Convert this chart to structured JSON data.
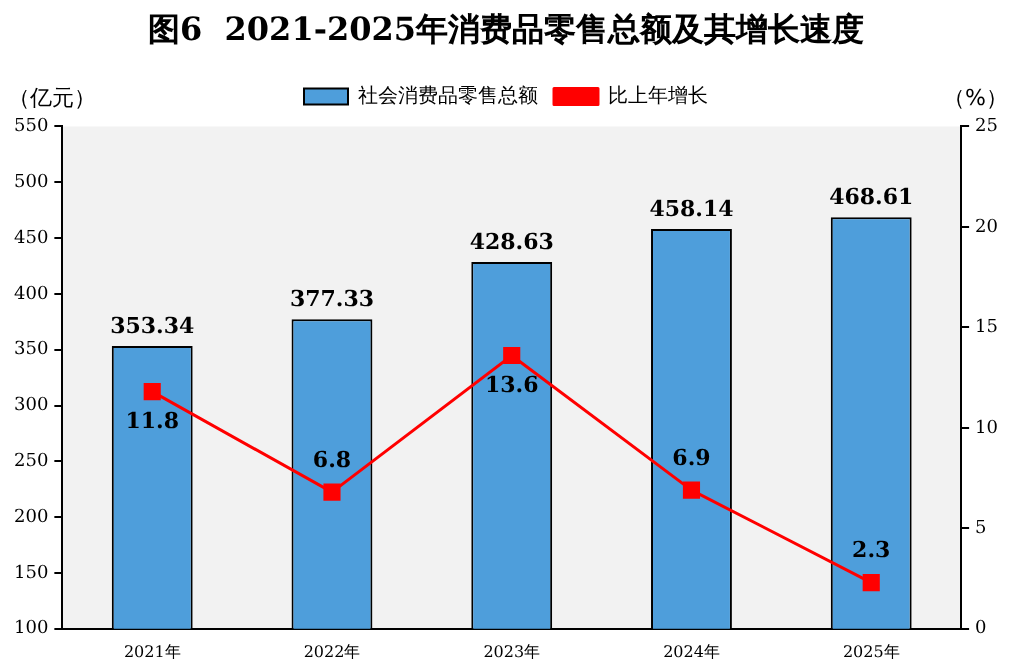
{
  "chart_data": {
    "type": "bar",
    "title": "图6  2021-2025年消费品零售总额及其增长速度",
    "ylabel": "（亿元）",
    "y2label": "（%）",
    "categories": [
      "2021年",
      "2022年",
      "2023年",
      "2024年",
      "2025年"
    ],
    "series": [
      {
        "name": "社会消费品零售总额",
        "color": "#4e9edb",
        "values": [
          353.34,
          377.33,
          428.63,
          458.14,
          468.61
        ],
        "value_labels": [
          "353.34",
          "377.33",
          "428.63",
          "458.14",
          "468.61"
        ]
      },
      {
        "name": "比上年增长",
        "type": "line",
        "axis": "y2",
        "color": "#ff0000",
        "marker": "square",
        "values": [
          11.8,
          6.8,
          13.6,
          6.9,
          2.3
        ],
        "value_labels": [
          "11.8",
          "6.8",
          "13.6",
          "6.9",
          "2.3"
        ]
      }
    ],
    "ylim": [
      100,
      550
    ],
    "yticks": [
      100,
      150,
      200,
      250,
      300,
      350,
      400,
      450,
      500,
      550
    ],
    "y2lim": [
      0,
      25
    ],
    "y2ticks": [
      0,
      5,
      10,
      15,
      20,
      25
    ],
    "grid": false,
    "legend": "top"
  }
}
